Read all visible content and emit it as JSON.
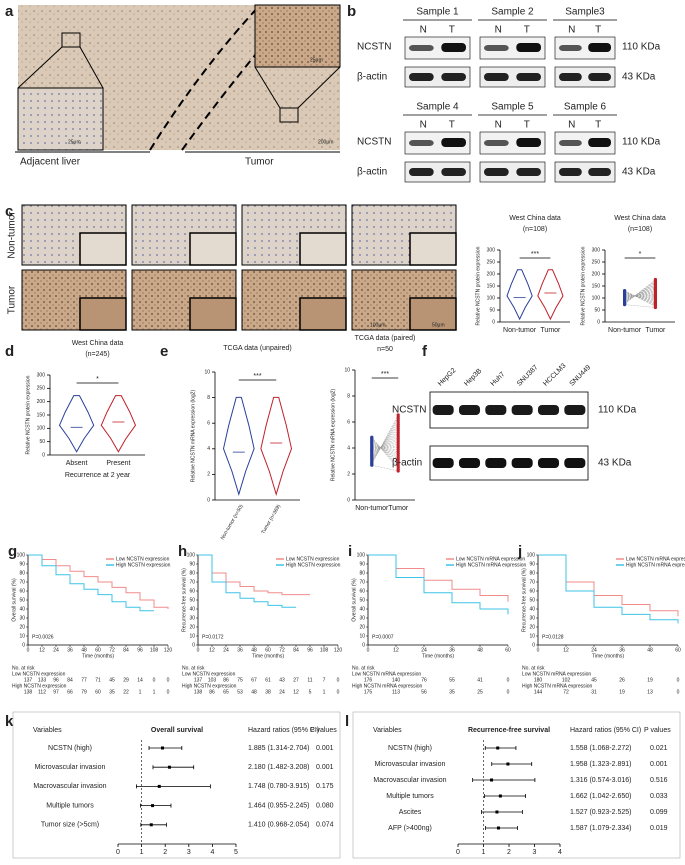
{
  "a": {
    "letter": "a",
    "labels": [
      "Adjacent liver",
      "Tumor"
    ],
    "scale_bars": [
      "25μm",
      "25μm",
      "200μm"
    ]
  },
  "b": {
    "letter": "b",
    "samples": [
      "Sample 1",
      "Sample 2",
      "Sample3",
      "Sample 4",
      "Sample 5",
      "Sample 6"
    ],
    "lanes": [
      "N",
      "T"
    ],
    "proteins": [
      "NCSTN",
      "β-actin"
    ],
    "sizes": [
      "110 KDa",
      "43 KDa"
    ]
  },
  "c": {
    "letter": "c",
    "rows": [
      "Non-tumor",
      "Tumor"
    ],
    "scale_bars": [
      "100μm",
      "50μm"
    ],
    "plots": [
      {
        "title": "West China data",
        "n": "(n=108)",
        "ylabel": "Relative NCSTN protein expression",
        "ylim": [
          0,
          300
        ],
        "yticks": [
          0,
          50,
          100,
          150,
          200,
          250,
          300
        ],
        "categories": [
          "Non-tumor",
          "Tumor"
        ],
        "sig": "***"
      },
      {
        "title": "West China data",
        "n": "(n=108)",
        "ylabel": "Relative NCSTN protein expression",
        "ylim": [
          0,
          300
        ],
        "yticks": [
          0,
          50,
          100,
          150,
          200,
          250,
          300
        ],
        "categories": [
          "Non-tumor",
          "Tumor"
        ],
        "sig": "*"
      }
    ]
  },
  "d": {
    "letter": "d",
    "plot": {
      "title": "West China data",
      "n": "(n=245)",
      "ylabel": "Relative NCSTN protein expression",
      "ylim": [
        0,
        300
      ],
      "yticks": [
        0,
        50,
        100,
        150,
        200,
        250,
        300
      ],
      "categories": [
        "Absent",
        "Present"
      ],
      "sig": "*",
      "xlabel": "Recurrence at 2 year"
    }
  },
  "e": {
    "letter": "e",
    "plots": [
      {
        "title": "TCGA data (unpaired)",
        "ylabel": "Relative NCSTN mRNA expression (log2)",
        "ylim": [
          0,
          10
        ],
        "yticks": [
          0,
          2,
          4,
          6,
          8,
          10
        ],
        "categories": [
          "Non-tumor (n=50)",
          "Tumor (n=369)"
        ],
        "sig": "***"
      },
      {
        "title": "TCGA data (paired)",
        "n": "n=50",
        "ylabel": "Relative NCSTN mRNA expression (log2)",
        "ylim": [
          0,
          10
        ],
        "yticks": [
          0,
          2,
          4,
          6,
          8,
          10
        ],
        "categories": [
          "Non-tumor",
          "Tumor"
        ],
        "sig": "***"
      }
    ]
  },
  "f": {
    "letter": "f",
    "cell_lines": [
      "HepG2",
      "Hep3B",
      "Huh7",
      "SNU387",
      "HCCLM3",
      "SNU449"
    ],
    "proteins": [
      "NCSTN",
      "β-actin"
    ],
    "sizes": [
      "110 KDa",
      "43 KDa"
    ]
  },
  "km": [
    {
      "letter": "g",
      "ylabel": "Overall survival (%)",
      "xlabel": "Time (months)",
      "xlim": [
        0,
        120
      ],
      "xticks": [
        0,
        12,
        24,
        36,
        48,
        60,
        72,
        84,
        96,
        108,
        120
      ],
      "ylim": [
        0,
        100
      ],
      "yticks": [
        0,
        10,
        20,
        30,
        40,
        50,
        60,
        70,
        80,
        90,
        100
      ],
      "p": "P=0.0026",
      "risk_title": "No. at risk",
      "curves": [
        {
          "name": "Low NCSTN expression",
          "color": "#f28b8b",
          "values": [
            100,
            95,
            88,
            82,
            76,
            70,
            64,
            58,
            50,
            42,
            40
          ]
        },
        {
          "name": "High NCSTN expression",
          "color": "#3fc3e6",
          "values": [
            100,
            88,
            78,
            68,
            62,
            56,
            48,
            42,
            38,
            38,
            null
          ]
        }
      ],
      "risk_rows": [
        {
          "name": "Low NCSTN expression",
          "values": [
            137,
            133,
            96,
            84,
            77,
            71,
            45,
            29,
            14,
            0,
            0
          ]
        },
        {
          "name": "High NCSTN expression",
          "values": [
            138,
            112,
            97,
            66,
            79,
            60,
            35,
            22,
            1,
            1,
            0
          ]
        }
      ]
    },
    {
      "letter": "h",
      "ylabel": "Recurrence-free survival (%)",
      "xlabel": "Time (months)",
      "xlim": [
        0,
        120
      ],
      "xticks": [
        0,
        12,
        24,
        36,
        48,
        60,
        72,
        84,
        96,
        108,
        120
      ],
      "ylim": [
        0,
        100
      ],
      "yticks": [
        0,
        10,
        20,
        30,
        40,
        50,
        60,
        70,
        80,
        90,
        100
      ],
      "p": "P=0.0172",
      "risk_title": "No. at risk",
      "curves": [
        {
          "name": "Low NCSTN expression",
          "color": "#f28b8b",
          "values": [
            100,
            80,
            70,
            65,
            60,
            58,
            56,
            56,
            56,
            null,
            null
          ]
        },
        {
          "name": "High NCSTN expression",
          "color": "#3fc3e6",
          "values": [
            100,
            70,
            58,
            52,
            48,
            44,
            42,
            42,
            null,
            null,
            null
          ]
        }
      ],
      "risk_rows": [
        {
          "name": "Low NCSTN expression",
          "values": [
            137,
            103,
            86,
            75,
            67,
            61,
            43,
            27,
            11,
            7,
            0
          ]
        },
        {
          "name": "High NCSTN expression",
          "values": [
            138,
            86,
            65,
            53,
            48,
            38,
            24,
            12,
            5,
            1,
            0
          ]
        }
      ]
    },
    {
      "letter": "i",
      "ylabel": "Overall survival (%)",
      "xlabel": "Time (months)",
      "xlim": [
        0,
        60
      ],
      "xticks": [
        0,
        12,
        24,
        36,
        48,
        60
      ],
      "ylim": [
        0,
        100
      ],
      "yticks": [
        0,
        10,
        20,
        30,
        40,
        50,
        60,
        70,
        80,
        90,
        100
      ],
      "p": "P=0.0007",
      "risk_title": "No. at risk",
      "curves": [
        {
          "name": "Low NCSTN mRNA expression",
          "color": "#f28b8b",
          "values": [
            100,
            85,
            72,
            62,
            55,
            48
          ]
        },
        {
          "name": "High NCSTN mRNA expression",
          "color": "#3fc3e6",
          "values": [
            100,
            75,
            58,
            47,
            40,
            34
          ]
        }
      ],
      "risk_rows": [
        {
          "name": "Low NCSTN mRNA expression",
          "values": [
            176,
            140,
            76,
            55,
            41,
            0
          ]
        },
        {
          "name": "High NCSTN mRNA expression",
          "values": [
            175,
            113,
            56,
            35,
            25,
            0
          ]
        }
      ]
    },
    {
      "letter": "j",
      "ylabel": "Recurrence-free survival (%)",
      "xlabel": "Time (months)",
      "xlim": [
        0,
        60
      ],
      "xticks": [
        0,
        12,
        24,
        36,
        48,
        60
      ],
      "ylim": [
        0,
        100
      ],
      "yticks": [
        0,
        10,
        20,
        30,
        40,
        50,
        60,
        70,
        80,
        90,
        100
      ],
      "p": "P=0.0128",
      "risk_title": "No. at risk",
      "curves": [
        {
          "name": "Low NCSTN mRNA expression",
          "color": "#f28b8b",
          "values": [
            100,
            70,
            55,
            45,
            38,
            32
          ]
        },
        {
          "name": "High NCSTN mRNA expression",
          "color": "#3fc3e6",
          "values": [
            100,
            60,
            42,
            34,
            28,
            24
          ]
        }
      ],
      "risk_rows": [
        {
          "name": "Low NCSTN mRNA expression",
          "values": [
            180,
            102,
            45,
            26,
            19,
            0
          ]
        },
        {
          "name": "High NCSTN mRNA expression",
          "values": [
            144,
            72,
            31,
            19,
            13,
            0
          ]
        }
      ]
    }
  ],
  "forest": [
    {
      "letter": "k",
      "title": "Overall survival",
      "headers": [
        "Variables",
        "Hazard ratios (95% CI)",
        "P values"
      ],
      "xlim": [
        0,
        5
      ],
      "xticks": [
        0,
        1,
        2,
        3,
        4,
        5
      ],
      "rows": [
        {
          "variable": "NCSTN (high)",
          "hr": "1.885 (1.314-2.704)",
          "p": "0.001"
        },
        {
          "variable": "Microvascular invasion",
          "hr": "2.180 (1.482-3.208)",
          "p": "0.001"
        },
        {
          "variable": "Macrovascular invasion",
          "hr": "1.748 (0.780-3.915)",
          "p": "0.175"
        },
        {
          "variable": "Multiple tumors",
          "hr": "1.464 (0.955-2.245)",
          "p": "0.080"
        },
        {
          "variable": "Tumor size (>5cm)",
          "hr": "1.410 (0.968-2.054)",
          "p": "0.074"
        }
      ]
    },
    {
      "letter": "l",
      "title": "Recurrence-free survival",
      "headers": [
        "Variables",
        "Hazard ratios (95% CI)",
        "P values"
      ],
      "xlim": [
        0,
        4
      ],
      "xticks": [
        0,
        1,
        2,
        3,
        4
      ],
      "rows": [
        {
          "variable": "NCSTN (high)",
          "hr": "1.558 (1.068-2.272)",
          "p": "0.021"
        },
        {
          "variable": "Microvascular invasion",
          "hr": "1.958 (1.323-2.891)",
          "p": "0.001"
        },
        {
          "variable": "Macrovascular invasion",
          "hr": "1.316 (0.574-3.016)",
          "p": "0.516"
        },
        {
          "variable": "Multiple tumors",
          "hr": "1.662 (1.042-2.650)",
          "p": "0.033"
        },
        {
          "variable": "Ascites",
          "hr": "1.527 (0.923-2.525)",
          "p": "0.099"
        },
        {
          "variable": "AFP (>400ng)",
          "hr": "1.587 (1.079-2.334)",
          "p": "0.019"
        }
      ]
    }
  ]
}
